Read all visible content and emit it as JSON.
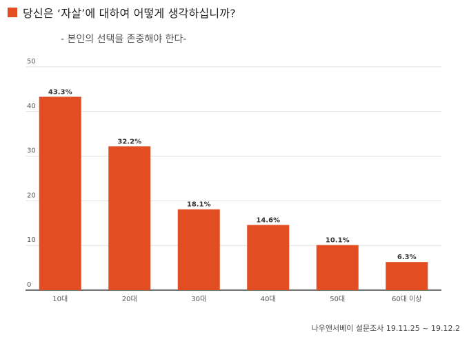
{
  "title": "당신은 ‘자살’에 대하여 어떻게 생각하십니까?",
  "subtitle": "- 본인의 선택을 존중해야 한다-",
  "source": "나우앤서베이 설문조사 19.11.25 ~ 19.12.2",
  "colors": {
    "bar": "#e24e21",
    "marker": "#e24e21",
    "grid": "#e0e0e0",
    "axis": "#444444"
  },
  "chart_data": {
    "type": "bar",
    "title": "당신은 ‘자살’에 대하여 어떻게 생각하십니까?",
    "subtitle": "- 본인의 선택을 존중해야 한다-",
    "categories": [
      "10대",
      "20대",
      "30대",
      "40대",
      "50대",
      "60대 이상"
    ],
    "values": [
      43.3,
      32.2,
      18.1,
      14.6,
      10.1,
      6.3
    ],
    "value_labels": [
      "43.3%",
      "32.2%",
      "18.1%",
      "14.6%",
      "10.1%",
      "6.3%"
    ],
    "y_ticks": [
      0,
      10,
      20,
      30,
      40,
      50
    ],
    "ylim": [
      0,
      50
    ],
    "grid": true,
    "legend": "none"
  }
}
